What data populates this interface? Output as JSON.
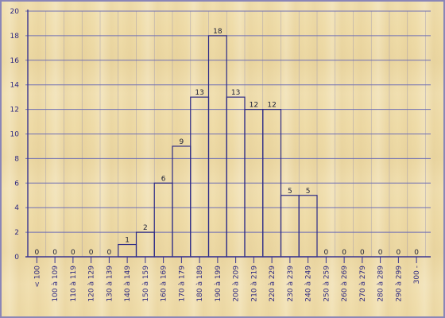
{
  "colors": {
    "axis": "#3a3590",
    "grid": "#6f6fb4",
    "bar_stroke": "#2c2a86",
    "text": "#2f2a82"
  },
  "chart_data": {
    "type": "bar",
    "title": "",
    "xlabel": "",
    "ylabel": "",
    "ylim": [
      0,
      20
    ],
    "yticks": [
      0,
      2,
      4,
      6,
      8,
      10,
      12,
      14,
      16,
      18,
      20
    ],
    "categories": [
      "< 100",
      "100 à 109",
      "110 à 119",
      "120 à 129",
      "130 à 139",
      "140 à 149",
      "150 à 159",
      "160 à 169",
      "170 à 179",
      "180 à 189",
      "190 à 199",
      "200 à 209",
      "210 à 219",
      "220 à 229",
      "230 à 239",
      "240 à 249",
      "250 à 259",
      "260 à 269",
      "270 à 279",
      "280 à 289",
      "290 à 299",
      "300 -"
    ],
    "values": [
      0,
      0,
      0,
      0,
      0,
      1,
      2,
      6,
      9,
      13,
      18,
      13,
      12,
      12,
      5,
      5,
      0,
      0,
      0,
      0,
      0,
      0
    ],
    "grid": true,
    "bar_fill": "none"
  }
}
